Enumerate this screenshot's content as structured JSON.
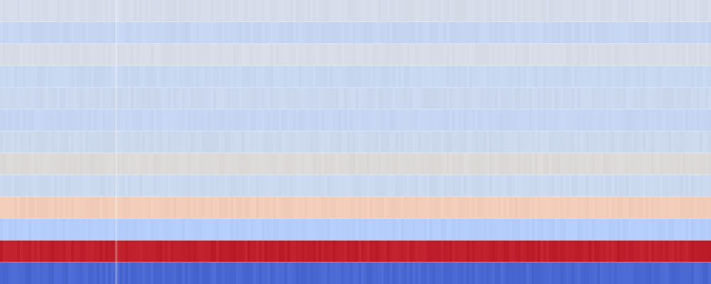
{
  "chart_data": {
    "type": "heatmap",
    "title": "",
    "xlabel": "",
    "ylabel": "",
    "colormap": "coolwarm",
    "value_range": [
      -1,
      1
    ],
    "grid": false,
    "legend": "none",
    "rows": [
      {
        "value": -0.08,
        "color": "#d6dce8"
      },
      {
        "value": -0.26,
        "color": "#c5d6f2"
      },
      {
        "value": -0.06,
        "color": "#d8dce6"
      },
      {
        "value": -0.22,
        "color": "#c8d8f0"
      },
      {
        "value": -0.18,
        "color": "#cbd8ee"
      },
      {
        "value": -0.24,
        "color": "#c6d6f1"
      },
      {
        "value": -0.15,
        "color": "#ccd9ed"
      },
      {
        "value": 0.02,
        "color": "#dcdad8"
      },
      {
        "value": -0.16,
        "color": "#cbd9ee"
      },
      {
        "value": 0.24,
        "color": "#f1ccb8"
      },
      {
        "value": -0.38,
        "color": "#b4cdfa"
      },
      {
        "value": 0.92,
        "color": "#bf1f2c"
      },
      {
        "value": -0.88,
        "color": "#4a68d2"
      }
    ]
  }
}
